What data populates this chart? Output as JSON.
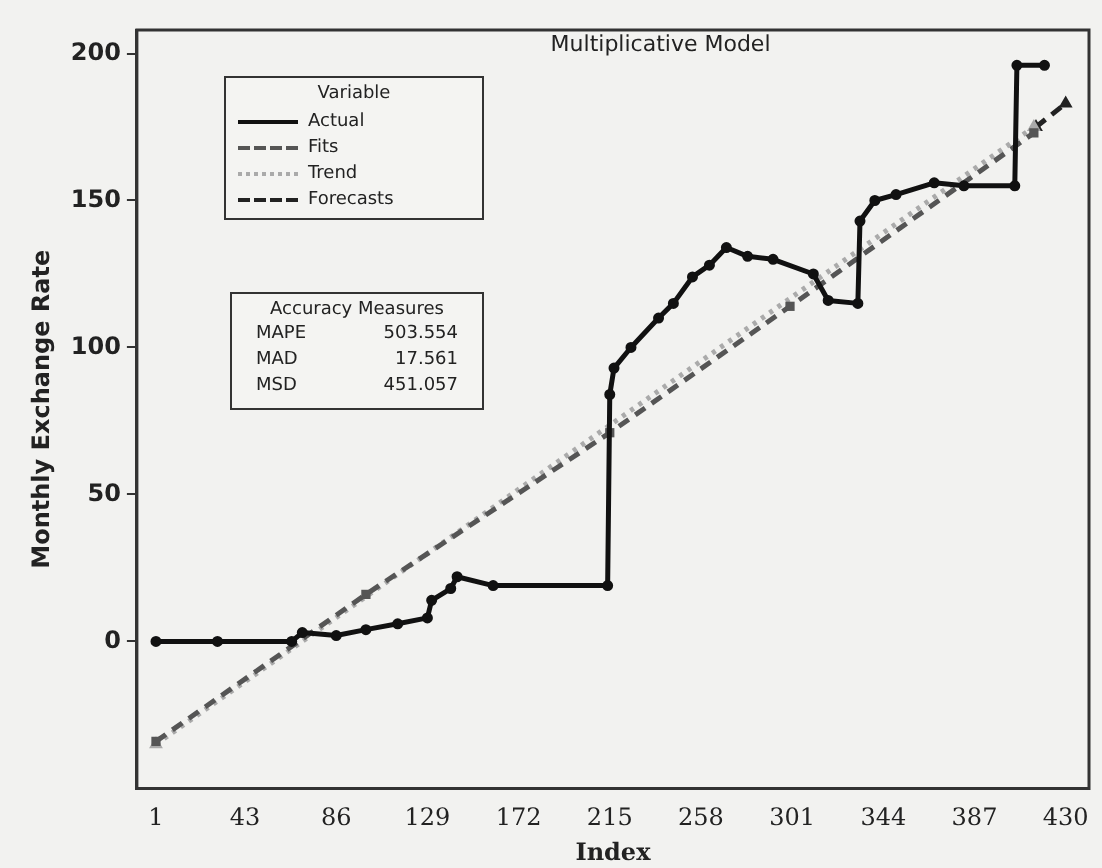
{
  "chart_data": {
    "type": "line",
    "title": "Multiplicative Model",
    "xlabel": "Index",
    "ylabel": "Monthly Exchange Rate",
    "legend_title": "Variable",
    "legend": "top left",
    "grid": false,
    "xlim": [
      -8,
      441
    ],
    "xticks": [
      1,
      43,
      86,
      129,
      172,
      215,
      258,
      301,
      344,
      387,
      430
    ],
    "ylim": [
      -50,
      208
    ],
    "yticks": [
      0,
      50,
      100,
      150,
      200
    ],
    "series": [
      {
        "name": "Actual",
        "color": "#111111",
        "marker": "circle",
        "line_style": "solid",
        "x": [
          1,
          30,
          65,
          70,
          86,
          100,
          115,
          129,
          131,
          140,
          143,
          160,
          214,
          215,
          217,
          225,
          238,
          245,
          254,
          262,
          270,
          280,
          292,
          311,
          318,
          332,
          333,
          340,
          350,
          368,
          382,
          406,
          407,
          420
        ],
        "values": [
          0,
          0,
          0,
          3,
          2,
          4,
          6,
          8,
          14,
          18,
          22,
          19,
          19,
          84,
          93,
          100,
          110,
          115,
          124,
          128,
          134,
          131,
          130,
          125,
          116,
          115,
          143,
          150,
          152,
          156,
          155,
          155,
          196,
          196
        ]
      },
      {
        "name": "Fits",
        "color": "#555555",
        "marker": "square",
        "line_style": "dashed",
        "x": [
          1,
          100,
          215,
          300,
          415
        ],
        "values": [
          -34,
          16,
          71,
          114,
          173
        ]
      },
      {
        "name": "Trend",
        "color": "#aaaaaa",
        "marker": "triangle",
        "line_style": "dotted",
        "x": [
          1,
          415
        ],
        "values": [
          -35,
          175
        ]
      },
      {
        "name": "Forecasts",
        "color": "#222222",
        "marker": "triangle",
        "line_style": "dashed",
        "x": [
          416,
          430
        ],
        "values": [
          175,
          183
        ]
      }
    ],
    "annotations": [
      "Accuracy Measures",
      "MAPE 503.554",
      "MAD 17.561",
      "MSD 451.057"
    ]
  }
}
